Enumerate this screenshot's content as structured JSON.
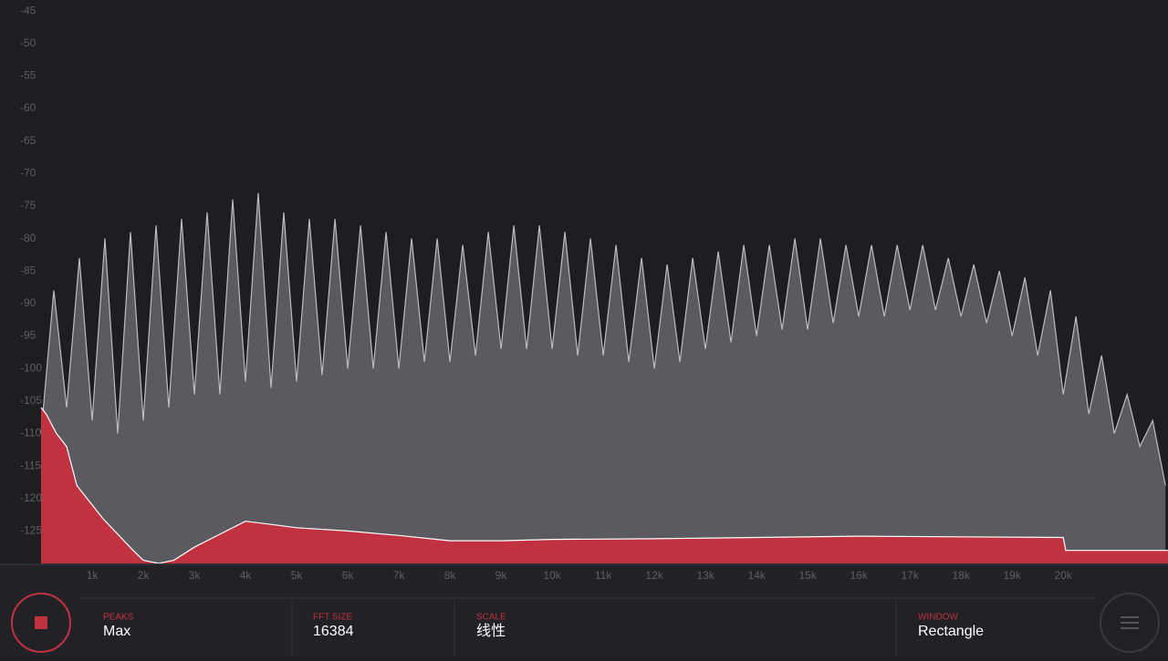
{
  "chart_data": {
    "type": "area",
    "xlim": [
      0,
      22050
    ],
    "ylim": [
      -130,
      -43.3
    ],
    "yticks": [
      -45,
      -50,
      -55,
      -60,
      -65,
      -70,
      -75,
      -80,
      -85,
      -90,
      -95,
      -100,
      -105,
      -110,
      -115,
      -120,
      -125
    ],
    "xticks": [
      {
        "value": 1000,
        "label": "1k"
      },
      {
        "value": 2000,
        "label": "2k"
      },
      {
        "value": 3000,
        "label": "3k"
      },
      {
        "value": 4000,
        "label": "4k"
      },
      {
        "value": 5000,
        "label": "5k"
      },
      {
        "value": 6000,
        "label": "6k"
      },
      {
        "value": 7000,
        "label": "7k"
      },
      {
        "value": 8000,
        "label": "8k"
      },
      {
        "value": 9000,
        "label": "9k"
      },
      {
        "value": 10000,
        "label": "10k"
      },
      {
        "value": 11000,
        "label": "11k"
      },
      {
        "value": 12000,
        "label": "12k"
      },
      {
        "value": 13000,
        "label": "13k"
      },
      {
        "value": 14000,
        "label": "14k"
      },
      {
        "value": 15000,
        "label": "15k"
      },
      {
        "value": 16000,
        "label": "16k"
      },
      {
        "value": 17000,
        "label": "17k"
      },
      {
        "value": 18000,
        "label": "18k"
      },
      {
        "value": 19000,
        "label": "19k"
      },
      {
        "value": 20000,
        "label": "20k"
      }
    ],
    "series": [
      {
        "color": "#5b5a61",
        "line_color": "#bcbcc2",
        "x": [
          0,
          250,
          500,
          750,
          1000,
          1250,
          1500,
          1750,
          2000,
          2250,
          2500,
          2750,
          3000,
          3250,
          3500,
          3750,
          4000,
          4250,
          4500,
          4750,
          5000,
          5250,
          5500,
          5750,
          6000,
          6250,
          6500,
          6750,
          7000,
          7250,
          7500,
          7750,
          8000,
          8250,
          8500,
          8750,
          9000,
          9250,
          9500,
          9750,
          10000,
          10250,
          10500,
          10750,
          11000,
          11250,
          11500,
          11750,
          12000,
          12250,
          12500,
          12750,
          13000,
          13250,
          13500,
          13750,
          14000,
          14250,
          14500,
          14750,
          15000,
          15250,
          15500,
          15750,
          16000,
          16250,
          16500,
          16750,
          17000,
          17250,
          17500,
          17750,
          18000,
          18250,
          18500,
          18750,
          19000,
          19250,
          19500,
          19750,
          20000,
          20250,
          20500,
          20750,
          21000,
          21250,
          21500,
          21750,
          22000
        ],
        "values": [
          -110,
          -88,
          -106,
          -83,
          -108,
          -80,
          -110,
          -79,
          -108,
          -78,
          -106,
          -77,
          -104,
          -76,
          -104,
          -74,
          -102,
          -73,
          -103,
          -76,
          -102,
          -77,
          -101,
          -77,
          -100,
          -78,
          -100,
          -79,
          -100,
          -80,
          -99,
          -80,
          -99,
          -81,
          -98,
          -79,
          -97,
          -78,
          -97,
          -78,
          -97,
          -79,
          -98,
          -80,
          -98,
          -81,
          -99,
          -83,
          -100,
          -84,
          -99,
          -83,
          -97,
          -82,
          -96,
          -81,
          -95,
          -81,
          -94,
          -80,
          -94,
          -80,
          -93,
          -81,
          -92,
          -81,
          -92,
          -81,
          -91,
          -81,
          -91,
          -83,
          -92,
          -84,
          -93,
          -85,
          -95,
          -86,
          -98,
          -88,
          -104,
          -92,
          -107,
          -98,
          -110,
          -104,
          -112,
          -108,
          -118
        ]
      },
      {
        "color": "#c0323f",
        "line_color": "#ffffff",
        "x": [
          0,
          100,
          300,
          500,
          700,
          900,
          1000,
          1200,
          1500,
          1800,
          2000,
          2300,
          2600,
          3000,
          3500,
          4000,
          4500,
          5000,
          6000,
          7000,
          8000,
          9000,
          10000,
          12000,
          14000,
          16000,
          18000,
          20000,
          20050,
          22050
        ],
        "values": [
          -106,
          -107,
          -110,
          -112,
          -118,
          -120,
          -121,
          -123,
          -125.5,
          -128,
          -129.5,
          -130,
          -129.5,
          -127.5,
          -125.5,
          -123.5,
          -124,
          -124.5,
          -125,
          -125.7,
          -126.5,
          -126.5,
          -126.3,
          -126.2,
          -126,
          -125.8,
          -125.9,
          -126,
          -128,
          -128
        ]
      }
    ]
  },
  "controls": [
    {
      "label": "PEAKS",
      "value": "Max"
    },
    {
      "label": "FFT SIZE",
      "value": "16384"
    },
    {
      "label": "SCALE",
      "value": "线性"
    },
    {
      "label": "WINDOW",
      "value": "Rectangle"
    }
  ]
}
